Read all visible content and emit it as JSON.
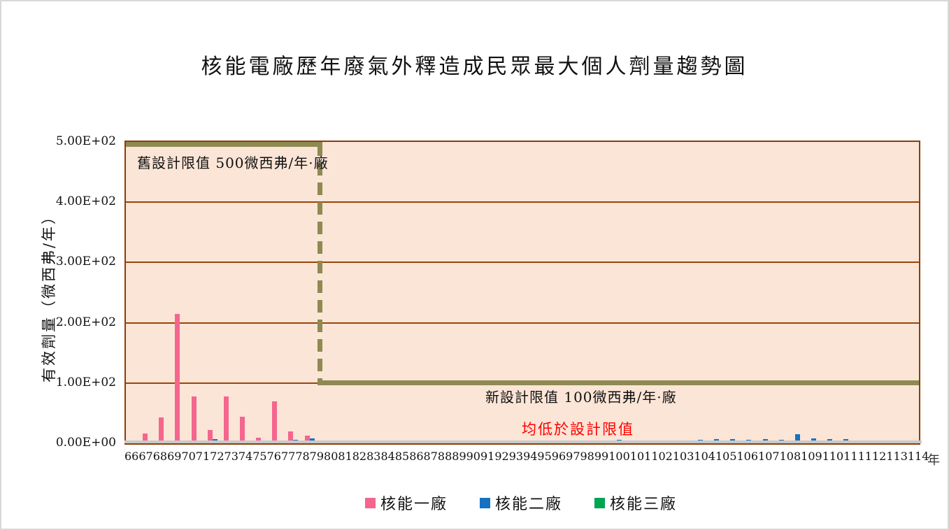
{
  "window": {
    "background": "#FFFFFF",
    "border_color": "#D8D8D8"
  },
  "chart_data": {
    "type": "bar",
    "title": "核能電廠歷年廢氣外釋造成民眾最大個人劑量趨勢圖",
    "ylabel": "有效劑量（微西弗/年）",
    "xlabel": "年",
    "ylim": [
      0,
      500
    ],
    "grid": true,
    "legend_position": "bottom",
    "plot_background": "#FBE5D6",
    "gridline_color": "#9A4409",
    "border_color": "#8B3E06",
    "axis_line_color": "#C9C9C9",
    "yticks": {
      "values": [
        0,
        100,
        200,
        300,
        400,
        500
      ],
      "labels": [
        "0.00E+00",
        "1.00E+02",
        "2.00E+02",
        "3.00E+02",
        "4.00E+02",
        "5.00E+02"
      ]
    },
    "categories": [
      "66",
      "67",
      "68",
      "69",
      "70",
      "71",
      "72",
      "73",
      "74",
      "75",
      "76",
      "77",
      "78",
      "79",
      "80",
      "81",
      "82",
      "83",
      "84",
      "85",
      "86",
      "87",
      "88",
      "89",
      "90",
      "91",
      "92",
      "93",
      "94",
      "95",
      "96",
      "97",
      "98",
      "99",
      "100",
      "101",
      "102",
      "103",
      "104",
      "105",
      "106",
      "107",
      "108",
      "109",
      "110",
      "111",
      "112",
      "113",
      "114"
    ],
    "series": [
      {
        "name": "核能一廠",
        "color": "#F4668E",
        "values": [
          5,
          16,
          43,
          215,
          78,
          22,
          78,
          44,
          9,
          70,
          20,
          13,
          3,
          2,
          2,
          2,
          2,
          2,
          2,
          2,
          2,
          2,
          2,
          2,
          2,
          2,
          2,
          2,
          2,
          2,
          2,
          2,
          2,
          2,
          2,
          2,
          2,
          2,
          2,
          2,
          2,
          2,
          2,
          2,
          2,
          2,
          2,
          2,
          2
        ]
      },
      {
        "name": "核能二廠",
        "color": "#1572C0",
        "values": [
          0,
          0,
          0,
          0,
          0,
          7,
          4,
          2,
          2,
          4,
          6,
          8,
          5,
          4,
          5,
          4,
          5,
          4,
          5,
          4,
          4,
          5,
          4,
          5,
          4,
          5,
          4,
          5,
          4,
          5,
          6,
          4,
          5,
          4,
          5,
          6,
          7,
          7,
          6,
          7,
          6,
          15,
          8,
          7,
          7,
          3,
          3,
          2,
          2
        ]
      },
      {
        "name": "核能三廠",
        "color": "#00A551",
        "values": [
          0,
          0,
          0,
          0,
          0,
          0,
          2,
          2,
          2,
          2,
          2,
          2,
          2,
          2,
          2,
          2,
          2,
          2,
          2,
          2,
          2,
          2,
          2,
          2,
          2,
          2,
          2,
          2,
          2,
          2,
          2,
          2,
          2,
          2,
          2,
          2,
          2,
          2,
          2,
          2,
          2,
          2,
          2,
          2,
          2,
          2,
          2,
          2,
          2
        ]
      }
    ],
    "annotations": {
      "old_limit": "舊設計限值 500微西弗/年·廠",
      "new_limit": "新設計限值 100微西弗/年·廠",
      "below_limit": "均低於設計限值",
      "below_limit_color": "#FF0000"
    },
    "limit_line": {
      "color": "#8E8A52",
      "old_value": 500,
      "new_value": 100,
      "transition_after_year": "77"
    }
  }
}
